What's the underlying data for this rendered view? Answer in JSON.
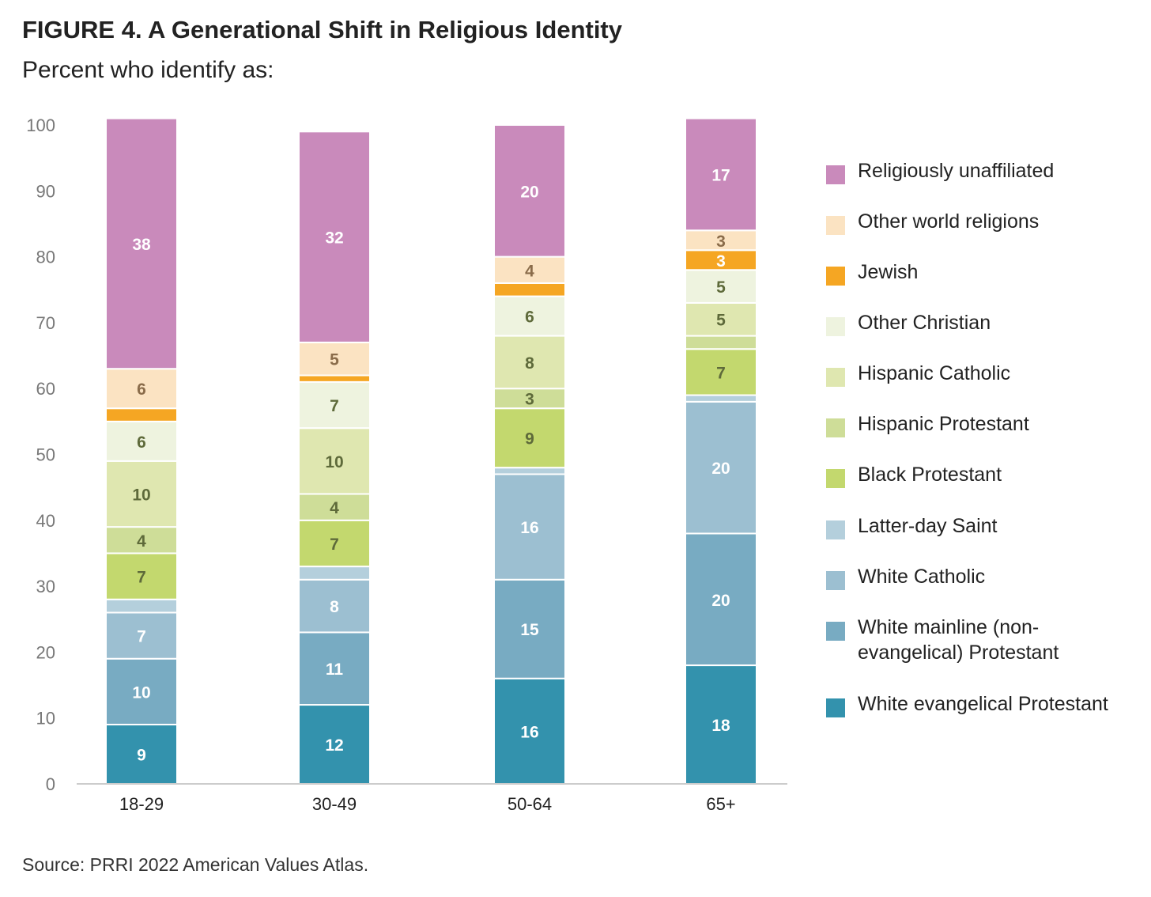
{
  "title": "FIGURE 4.  A Generational Shift in Religious Identity",
  "subtitle": "Percent who identify as:",
  "source": "Source: PRRI 2022 American Values Atlas.",
  "chart_data": {
    "type": "bar",
    "stacked": true,
    "categories": [
      "18-29",
      "30-49",
      "50-64",
      "65+"
    ],
    "ylim": [
      0,
      100
    ],
    "yticks": [
      0,
      10,
      20,
      30,
      40,
      50,
      60,
      70,
      80,
      90,
      100
    ],
    "grid": false,
    "legend_position": "right",
    "series": [
      {
        "name": "White evangelical Protestant",
        "color": "#3392ad",
        "label_color": "#ffffff",
        "values": [
          9,
          12,
          16,
          18
        ],
        "labels": [
          "9",
          "12",
          "16",
          "18"
        ]
      },
      {
        "name": "White mainline (non-evangelical) Protestant",
        "color": "#78abc2",
        "label_color": "#ffffff",
        "values": [
          10,
          11,
          15,
          20
        ],
        "labels": [
          "10",
          "11",
          "15",
          "20"
        ]
      },
      {
        "name": "White Catholic",
        "color": "#9cbfd1",
        "label_color": "#ffffff",
        "values": [
          7,
          8,
          16,
          20
        ],
        "labels": [
          "7",
          "8",
          "16",
          "20"
        ]
      },
      {
        "name": "Latter-day Saint",
        "color": "#b4cfdc",
        "label_color": "#ffffff",
        "values": [
          2,
          2,
          1,
          1
        ],
        "labels": [
          "",
          "",
          "",
          ""
        ]
      },
      {
        "name": "Black Protestant",
        "color": "#c3d86e",
        "label_color": "#5e6a3a",
        "values": [
          7,
          7,
          9,
          7
        ],
        "labels": [
          "7",
          "7",
          "9",
          "7"
        ]
      },
      {
        "name": "Hispanic Protestant",
        "color": "#cedd98",
        "label_color": "#5e6a3a",
        "values": [
          4,
          4,
          3,
          2
        ],
        "labels": [
          "4",
          "4",
          "3",
          ""
        ]
      },
      {
        "name": "Hispanic Catholic",
        "color": "#dfe7b0",
        "label_color": "#5e6a3a",
        "values": [
          10,
          10,
          8,
          5
        ],
        "labels": [
          "10",
          "10",
          "8",
          "5"
        ]
      },
      {
        "name": "Other Christian",
        "color": "#eef3df",
        "label_color": "#5e6a3a",
        "values": [
          6,
          7,
          6,
          5
        ],
        "labels": [
          "6",
          "7",
          "6",
          "5"
        ]
      },
      {
        "name": "Jewish",
        "color": "#f5a623",
        "label_color": "#ffffff",
        "values": [
          2,
          1,
          2,
          3
        ],
        "labels": [
          "",
          "",
          "",
          "3"
        ]
      },
      {
        "name": "Other world religions",
        "color": "#fbe3c2",
        "label_color": "#8a6c4a",
        "values": [
          6,
          5,
          4,
          3
        ],
        "labels": [
          "6",
          "5",
          "4",
          "3"
        ]
      },
      {
        "name": "Religiously unaffiliated",
        "color": "#c98abb",
        "label_color": "#ffffff",
        "values": [
          38,
          32,
          20,
          17
        ],
        "labels": [
          "38",
          "32",
          "20",
          "17"
        ]
      }
    ]
  },
  "legend": [
    {
      "label": "Religiously unaffiliated",
      "color": "#c98abb"
    },
    {
      "label": "Other world religions",
      "color": "#fbe3c2"
    },
    {
      "label": "Jewish",
      "color": "#f5a623"
    },
    {
      "label": "Other Christian",
      "color": "#eef3df"
    },
    {
      "label": "Hispanic Catholic",
      "color": "#dfe7b0"
    },
    {
      "label": "Hispanic Protestant",
      "color": "#cedd98"
    },
    {
      "label": "Black Protestant",
      "color": "#c3d86e"
    },
    {
      "label": "Latter-day Saint",
      "color": "#b4cfdc"
    },
    {
      "label": "White Catholic",
      "color": "#9cbfd1"
    },
    {
      "label": "White mainline (non-evangelical) Protestant",
      "color": "#78abc2"
    },
    {
      "label": "White evangelical Protestant",
      "color": "#3392ad"
    }
  ]
}
